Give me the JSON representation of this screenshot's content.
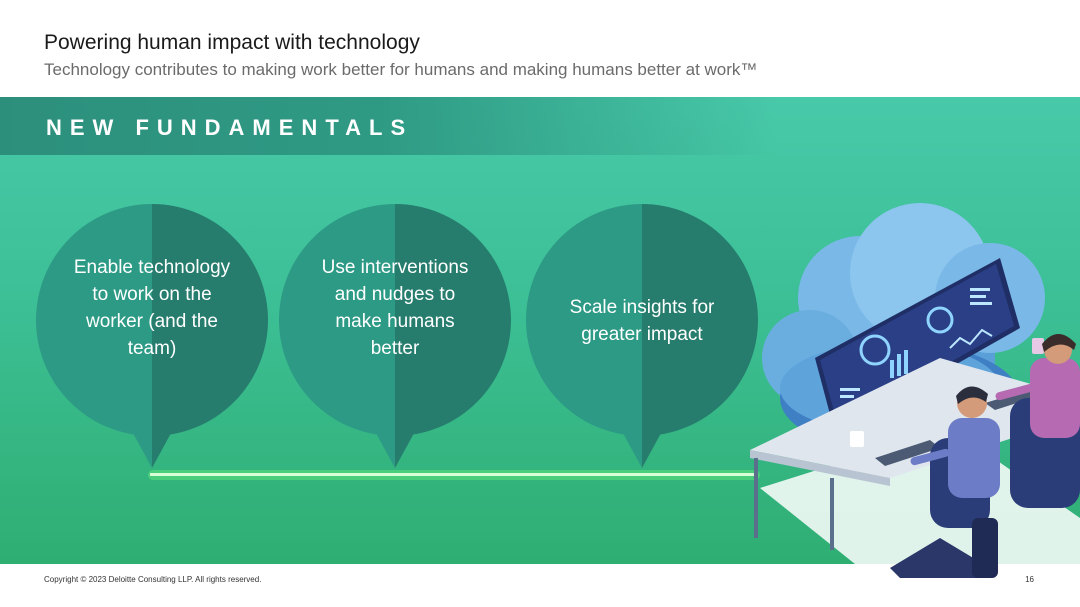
{
  "header": {
    "title": "Powering human impact with technology",
    "subtitle": "Technology contributes to making work better for humans and making humans better at work™"
  },
  "band": {
    "label": "NEW FUNDAMENTALS"
  },
  "bubbles": [
    {
      "text": "Enable technology to work on the worker (and the team)"
    },
    {
      "text": "Use interventions and nudges to make humans better"
    },
    {
      "text": "Scale insights for greater impact"
    }
  ],
  "colors": {
    "panel_top": "#48c9a9",
    "panel_bottom": "#2fae72",
    "bubble_left": "#2d9a85",
    "bubble_right": "#267d6d",
    "timeline": "#d8ffd6"
  },
  "illustration": {
    "icon": "cloud-computing-workers-icon"
  },
  "footer": {
    "copyright": "Copyright © 2023 Deloitte Consulting LLP. All rights reserved.",
    "page_number": "16"
  }
}
